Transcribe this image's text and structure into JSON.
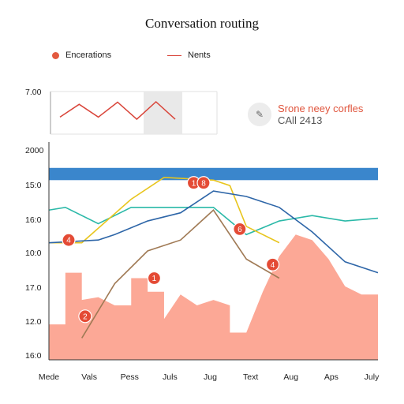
{
  "chart_data": {
    "type": "line",
    "title": "Conversation routing",
    "legend": {
      "placement": "top-left",
      "entries": [
        {
          "label": "Encerations",
          "marker": "dot",
          "color": "#e35a3f"
        },
        {
          "label": "Nents",
          "marker": "line",
          "color": "#d9453a"
        }
      ]
    },
    "note": {
      "line1": "Srone neey corfles",
      "line2": "CAll 2413"
    },
    "y_ticks": [
      "16:0",
      "12.0",
      "17.0",
      "10:0",
      "16:0",
      "15:0",
      "2000"
    ],
    "x_ticks": [
      "Mede",
      "Vals",
      "Pess",
      "Juls",
      "Jug",
      "Text",
      "Aug",
      "Aps",
      "July"
    ],
    "inset": {
      "ytick": "7.00",
      "values": [
        4,
        7,
        4,
        7.5,
        3.5,
        7.6,
        3.5
      ],
      "ylim": [
        0,
        10
      ]
    },
    "band": {
      "color": "#3a86cc",
      "y_range": [
        6.6,
        7.05
      ]
    },
    "ylim": [
      0,
      8
    ],
    "xlim": [
      0,
      10
    ],
    "area": {
      "color": "#fca896",
      "x": [
        0,
        0.5,
        0.5,
        1,
        1,
        1.5,
        2,
        2.5,
        2.5,
        3,
        3,
        3.5,
        3.5,
        4,
        4.5,
        5,
        5.5,
        5.5,
        6,
        6.5,
        7,
        7.5,
        8,
        8.5,
        9,
        9.5,
        10
      ],
      "y": [
        1.3,
        1.3,
        3.2,
        3.2,
        2.2,
        2.3,
        2.0,
        2.0,
        3.0,
        3.0,
        2.5,
        2.5,
        1.5,
        2.4,
        2.0,
        2.2,
        2.0,
        1.0,
        1.0,
        2.5,
        3.8,
        4.6,
        4.4,
        3.7,
        2.7,
        2.4,
        2.4
      ]
    },
    "series": [
      {
        "color": "#2bb9a8",
        "x": [
          0,
          0.5,
          1.5,
          2.5,
          3.5,
          5,
          6,
          7,
          8,
          9,
          10
        ],
        "y": [
          5.5,
          5.6,
          5.0,
          5.6,
          5.6,
          5.6,
          4.6,
          5.1,
          5.3,
          5.1,
          5.2
        ]
      },
      {
        "color": "#e8c51d",
        "x": [
          0,
          1,
          2.5,
          3.5,
          5,
          5.5,
          6,
          7
        ],
        "y": [
          4.3,
          4.3,
          5.9,
          6.7,
          6.6,
          6.4,
          4.9,
          4.3
        ]
      },
      {
        "color": "#2e66a8",
        "x": [
          0,
          1.5,
          2,
          3,
          4,
          5,
          6,
          7,
          8,
          9,
          10
        ],
        "y": [
          4.3,
          4.4,
          4.6,
          5.1,
          5.4,
          6.2,
          6.0,
          5.6,
          4.7,
          3.6,
          3.2
        ]
      },
      {
        "color": "#a07a55",
        "x": [
          1,
          2,
          3,
          4,
          5,
          6,
          7
        ],
        "y": [
          0.8,
          2.8,
          4.0,
          4.4,
          5.5,
          3.7,
          3.0
        ]
      }
    ],
    "markers": [
      {
        "label": "4",
        "x": 0.6,
        "y": 4.4
      },
      {
        "label": "1",
        "x": 3.2,
        "y": 3.0
      },
      {
        "label": "2",
        "x": 1.1,
        "y": 1.6
      },
      {
        "label": "1",
        "x": 4.4,
        "y": 6.5
      },
      {
        "label": "8",
        "x": 4.7,
        "y": 6.5
      },
      {
        "label": "6",
        "x": 5.8,
        "y": 4.8
      },
      {
        "label": "4",
        "x": 6.8,
        "y": 3.5
      }
    ]
  }
}
